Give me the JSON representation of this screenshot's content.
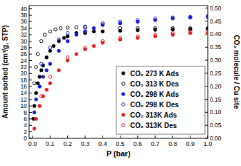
{
  "chart_data": {
    "type": "scatter",
    "x_label": "P (bar)",
    "y_label": "Amount sorbed (cm³/g, STP)",
    "y2_label": "CO₂ molecule / Cu site",
    "xlim": [
      -0.02,
      1.0
    ],
    "xticks": [
      {
        "value": 0,
        "label": "0.0"
      },
      0.1,
      0.2,
      0.3,
      0.4,
      0.5,
      0.6,
      0.7,
      0.8,
      0.9,
      {
        "value": 1,
        "label": "1.0"
      }
    ],
    "ylim": [
      0,
      41
    ],
    "yticks": [
      0,
      2,
      4,
      6,
      8,
      10,
      12,
      14,
      16,
      18,
      20,
      22,
      24,
      26,
      28,
      30,
      32,
      34,
      36,
      38,
      40
    ],
    "y2lim": [
      0,
      0.51
    ],
    "y2ticks": [
      {
        "value": 0,
        "label": "0.00"
      },
      {
        "value": 0.05,
        "label": "0.05"
      },
      {
        "value": 0.1,
        "label": "0.10"
      },
      {
        "value": 0.15,
        "label": "0.15"
      },
      {
        "value": 0.2,
        "label": "0.20"
      },
      {
        "value": 0.25,
        "label": "0.25"
      },
      {
        "value": 0.3,
        "label": "0.30"
      },
      {
        "value": 0.35,
        "label": "0.35"
      },
      {
        "value": 0.4,
        "label": "0.40"
      },
      {
        "value": 0.45,
        "label": "0.45"
      },
      {
        "value": 0.5,
        "label": "0.50"
      }
    ],
    "legend": "lower right",
    "series": [
      {
        "name": "CO₂ 273 K Ads",
        "color": "#000000",
        "marker": "filled",
        "x": [
          0.005,
          0.01,
          0.02,
          0.03,
          0.04,
          0.05,
          0.06,
          0.08,
          0.1,
          0.12,
          0.15,
          0.18,
          0.2,
          0.25,
          0.3,
          0.35,
          0.4,
          0.5,
          0.6,
          0.7,
          0.8,
          0.9,
          1.0
        ],
        "values": [
          6,
          10,
          14,
          17,
          19,
          21,
          22.5,
          25,
          27,
          28.5,
          30,
          31,
          31.5,
          32.5,
          32.5,
          33,
          33,
          33.2,
          33.4,
          33.5,
          33.6,
          33.7,
          33.8
        ]
      },
      {
        "name": "CO₂ 313 K Des",
        "color": "#000000",
        "marker": "open",
        "x": [
          0.01,
          0.02,
          0.03,
          0.05,
          0.07,
          0.1,
          0.13,
          0.16,
          0.2,
          0.25,
          0.3,
          0.5,
          0.6,
          0.7,
          0.8,
          0.9,
          1.0
        ],
        "values": [
          17,
          22,
          26,
          30,
          32,
          33,
          33.6,
          34,
          34.2,
          34.3,
          34.2,
          34,
          34,
          34,
          34,
          34,
          34
        ]
      },
      {
        "name": "CO₂ 298 K Ads",
        "color": "#1a1ad6",
        "marker": "filled",
        "x": [
          0.01,
          0.02,
          0.04,
          0.06,
          0.08,
          0.1,
          0.15,
          0.2,
          0.25,
          0.3,
          0.35,
          0.4,
          0.5,
          0.6,
          0.7,
          0.8,
          0.9,
          1.0
        ],
        "values": [
          8,
          12,
          16,
          19,
          21,
          23,
          27,
          30,
          32,
          33,
          34,
          35,
          35.5,
          36,
          36.5,
          37,
          37.3,
          37.5
        ]
      },
      {
        "name": "CO₂ 298 K Des",
        "color": "#1a1ad6",
        "marker": "open",
        "x": [
          0.05,
          0.1,
          0.15,
          0.2,
          0.3,
          0.4,
          0.5,
          0.6,
          0.7,
          0.8,
          0.9,
          1.0
        ],
        "values": [
          23,
          28,
          30.5,
          32.5,
          34.5,
          35.5,
          36,
          36.5,
          37,
          37.3,
          37.5,
          37.8
        ]
      },
      {
        "name": "CO₂ 313K Ads",
        "color": "#e02020",
        "marker": "filled",
        "x": [
          0.01,
          0.02,
          0.04,
          0.06,
          0.08,
          0.1,
          0.15,
          0.2,
          0.25,
          0.3,
          0.35,
          0.4,
          0.5,
          0.6,
          0.7,
          0.8,
          0.9,
          1.0
        ],
        "values": [
          3,
          6,
          10,
          13,
          15,
          17,
          21,
          24,
          26,
          27.5,
          28.5,
          29.5,
          30.5,
          31,
          31.5,
          32,
          32.5,
          32.5
        ]
      },
      {
        "name": "CO₂ 313K Des",
        "color": "#e02020",
        "marker": "open",
        "x": [
          0.05,
          0.1,
          0.2,
          0.3,
          0.4,
          0.5,
          0.6,
          0.7,
          0.8,
          0.9,
          1.0
        ],
        "values": [
          13,
          19,
          25,
          28,
          30,
          31,
          31.5,
          32,
          32.5,
          33,
          33
        ]
      }
    ]
  }
}
